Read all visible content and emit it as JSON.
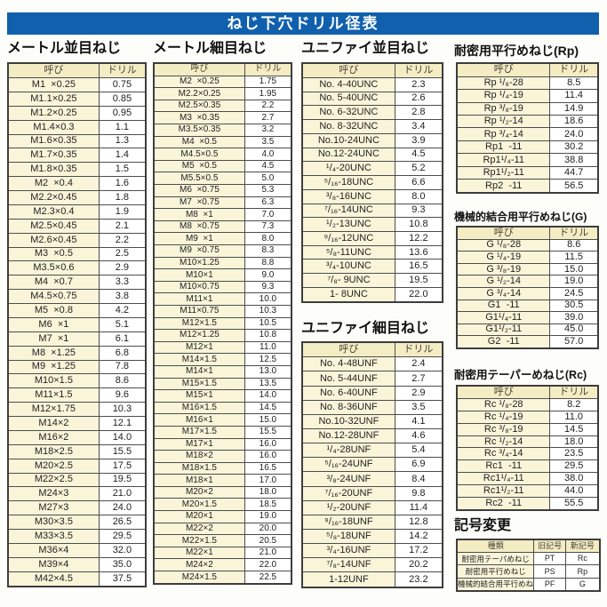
{
  "page_title": "ねじ下穴ドリル径表",
  "colors": {
    "banner_blue": "#1160ae",
    "header_cell_bg": "#f4edc4",
    "name_cell_bg": "#faf5d9",
    "value_cell_bg": "#ffffff",
    "border": "#4d4d4d"
  },
  "tables": [
    {
      "id": "metric-coarse",
      "title": "メートル並目ねじ",
      "columns": [
        "呼び",
        "ドリル"
      ],
      "rows": [
        [
          "M1  ×0.25",
          "0.75"
        ],
        [
          "M1.1×0.25",
          "0.85"
        ],
        [
          "M1.2×0.25",
          "0.95"
        ],
        [
          "M1.4×0.3",
          "1.1"
        ],
        [
          "M1.6×0.35",
          "1.3"
        ],
        [
          "M1.7×0.35",
          "1.4"
        ],
        [
          "M1.8×0.35",
          "1.5"
        ],
        [
          "M2  ×0.4",
          "1.6"
        ],
        [
          "M2.2×0.45",
          "1.8"
        ],
        [
          "M2.3×0.4",
          "1.9"
        ],
        [
          "M2.5×0.45",
          "2.1"
        ],
        [
          "M2.6×0.45",
          "2.2"
        ],
        [
          "M3  ×0.5",
          "2.5"
        ],
        [
          "M3.5×0.6",
          "2.9"
        ],
        [
          "M4  ×0.7",
          "3.3"
        ],
        [
          "M4.5×0.75",
          "3.8"
        ],
        [
          "M5  ×0.8",
          "4.2"
        ],
        [
          "M6  ×1",
          "5.1"
        ],
        [
          "M7  ×1",
          "6.1"
        ],
        [
          "M8  ×1.25",
          "6.8"
        ],
        [
          "M9  ×1.25",
          "7.8"
        ],
        [
          "M10×1.5",
          "8.6"
        ],
        [
          "M11×1.5",
          "9.6"
        ],
        [
          "M12×1.75",
          "10.3"
        ],
        [
          "M14×2",
          "12.1"
        ],
        [
          "M16×2",
          "14.0"
        ],
        [
          "M18×2.5",
          "15.5"
        ],
        [
          "M20×2.5",
          "17.5"
        ],
        [
          "M22×2.5",
          "19.5"
        ],
        [
          "M24×3",
          "21.0"
        ],
        [
          "M27×3",
          "24.0"
        ],
        [
          "M30×3.5",
          "26.5"
        ],
        [
          "M33×3.5",
          "29.5"
        ],
        [
          "M36×4",
          "32.0"
        ],
        [
          "M39×4",
          "35.0"
        ],
        [
          "M42×4.5",
          "37.5"
        ]
      ]
    },
    {
      "id": "metric-fine",
      "title": "メートル細目ねじ",
      "columns": [
        "呼び",
        "ドリル"
      ],
      "rows": [
        [
          "M2  ×0.25",
          "1.75"
        ],
        [
          "M2.2×0.25",
          "1.95"
        ],
        [
          "M2.5×0.35",
          "2.2"
        ],
        [
          "M3  ×0.35",
          "2.7"
        ],
        [
          "M3.5×0.35",
          "3.2"
        ],
        [
          "M4  ×0.5",
          "3.5"
        ],
        [
          "M4.5×0.5",
          "4.0"
        ],
        [
          "M5  ×0.5",
          "4.5"
        ],
        [
          "M5.5×0.5",
          "5.0"
        ],
        [
          "M6  ×0.75",
          "5.3"
        ],
        [
          "M7  ×0.75",
          "6.3"
        ],
        [
          "M8  ×1",
          "7.0"
        ],
        [
          "M8  ×0.75",
          "7.3"
        ],
        [
          "M9  ×1",
          "8.0"
        ],
        [
          "M9  ×0.75",
          "8.3"
        ],
        [
          "M10×1.25",
          "8.8"
        ],
        [
          "M10×1",
          "9.0"
        ],
        [
          "M10×0.75",
          "9.3"
        ],
        [
          "M11×1",
          "10.0"
        ],
        [
          "M11×0.75",
          "10.3"
        ],
        [
          "M12×1.5",
          "10.5"
        ],
        [
          "M12×1.25",
          "10.8"
        ],
        [
          "M12×1",
          "11.0"
        ],
        [
          "M14×1.5",
          "12.5"
        ],
        [
          "M14×1",
          "13.0"
        ],
        [
          "M15×1.5",
          "13.5"
        ],
        [
          "M15×1",
          "14.0"
        ],
        [
          "M16×1.5",
          "14.5"
        ],
        [
          "M16×1",
          "15.0"
        ],
        [
          "M17×1.5",
          "15.5"
        ],
        [
          "M17×1",
          "16.0"
        ],
        [
          "M18×2",
          "16.0"
        ],
        [
          "M18×1.5",
          "16.5"
        ],
        [
          "M18×1",
          "17.0"
        ],
        [
          "M20×2",
          "18.0"
        ],
        [
          "M20×1.5",
          "18.5"
        ],
        [
          "M20×1",
          "19.0"
        ],
        [
          "M22×2",
          "20.0"
        ],
        [
          "M22×1.5",
          "20.5"
        ],
        [
          "M22×1",
          "21.0"
        ],
        [
          "M24×2",
          "22.0"
        ],
        [
          "M24×1.5",
          "22.5"
        ]
      ]
    },
    {
      "id": "unified-coarse",
      "title": "ユニファイ並目ねじ",
      "columns": [
        "呼び",
        "ドリル"
      ],
      "rows": [
        [
          "No. 4-40UNC",
          "2.3"
        ],
        [
          "No. 5-40UNC",
          "2.6"
        ],
        [
          "No. 6-32UNC",
          "2.8"
        ],
        [
          "No. 8-32UNC",
          "3.4"
        ],
        [
          "No.10-24UNC",
          "3.9"
        ],
        [
          "No.12-24UNC",
          "4.5"
        ],
        [
          "¹/₄-20UNC",
          "5.2"
        ],
        [
          "⁵/₁₆-18UNC",
          "6.6"
        ],
        [
          "³/₈-16UNC",
          "8.0"
        ],
        [
          "⁷/₁₆-14UNC",
          "9.3"
        ],
        [
          "¹/₂-13UNC",
          "10.8"
        ],
        [
          "⁹/₁₆-12UNC",
          "12.2"
        ],
        [
          "⁵/₈-11UNC",
          "13.6"
        ],
        [
          "³/₄-10UNC",
          "16.5"
        ],
        [
          "⁷/₈- 9UNC",
          "19.5"
        ],
        [
          "1- 8UNC",
          "22.0"
        ]
      ]
    },
    {
      "id": "unified-fine",
      "title": "ユニファイ細目ねじ",
      "columns": [
        "呼び",
        "ドリル"
      ],
      "rows": [
        [
          "No. 4-48UNF",
          "2.4"
        ],
        [
          "No. 5-44UNF",
          "2.7"
        ],
        [
          "No. 6-40UNF",
          "2.9"
        ],
        [
          "No. 8-36UNF",
          "3.5"
        ],
        [
          "No.10-32UNF",
          "4.1"
        ],
        [
          "No.12-28UNF",
          "4.6"
        ],
        [
          "¹/₄-28UNF",
          "5.4"
        ],
        [
          "⁵/₁₆-24UNF",
          "6.9"
        ],
        [
          "³/₈-24UNF",
          "8.4"
        ],
        [
          "⁷/₁₆-20UNF",
          "9.8"
        ],
        [
          "¹/₂-20UNF",
          "11.4"
        ],
        [
          "⁹/₁₆-18UNF",
          "12.8"
        ],
        [
          "⁵/₈-18UNF",
          "14.2"
        ],
        [
          "³/₄-16UNF",
          "17.2"
        ],
        [
          "⁷/₈-14UNF",
          "20.2"
        ],
        [
          "1-12UNF",
          "23.2"
        ]
      ]
    },
    {
      "id": "rp-parallel",
      "title": "耐密用平行めねじ(Rp)",
      "columns": [
        "呼び",
        "ドリル"
      ],
      "rows": [
        [
          "Rp ¹/₈-28",
          "8.5"
        ],
        [
          "Rp ¹/₄-19",
          "11.4"
        ],
        [
          "Rp ³/₈-19",
          "14.9"
        ],
        [
          "Rp ¹/₂-14",
          "18.6"
        ],
        [
          "Rp ³/₄-14",
          "24.0"
        ],
        [
          "Rp1  -11",
          "30.2"
        ],
        [
          "Rp1¹/₄-11",
          "38.8"
        ],
        [
          "Rp1¹/₂-11",
          "44.7"
        ],
        [
          "Rp2  -11",
          "56.5"
        ]
      ]
    },
    {
      "id": "g-parallel",
      "title": "機械的結合用平行めねじ(G)",
      "columns": [
        "呼び",
        "ドリル"
      ],
      "rows": [
        [
          "G ¹/₈-28",
          "8.6"
        ],
        [
          "G ¹/₄-19",
          "11.5"
        ],
        [
          "G ³/₈-19",
          "15.0"
        ],
        [
          "G ¹/₂-14",
          "19.0"
        ],
        [
          "G ³/₄-14",
          "24.5"
        ],
        [
          "G1  -11",
          "30.5"
        ],
        [
          "G1¹/₄-11",
          "39.0"
        ],
        [
          "G1¹/₂-11",
          "45.0"
        ],
        [
          "G2  -11",
          "57.0"
        ]
      ]
    },
    {
      "id": "rc-taper",
      "title": "耐密用テーパーめねじ(Rc)",
      "columns": [
        "呼び",
        "ドリル"
      ],
      "rows": [
        [
          "Rc ¹/₈-28",
          "8.2"
        ],
        [
          "Rc ¹/₄-19",
          "11.0"
        ],
        [
          "Rc ³/₈-19",
          "14.5"
        ],
        [
          "Rc ¹/₂-14",
          "18.0"
        ],
        [
          "Rc ³/₄-14",
          "23.5"
        ],
        [
          "Rc1  -11",
          "29.5"
        ],
        [
          "Rc1¹/₄-11",
          "38.0"
        ],
        [
          "Rc1¹/₂-11",
          "44.0"
        ],
        [
          "Rc2  -11",
          "55.5"
        ]
      ]
    },
    {
      "id": "symbol-change",
      "title": "記号変更",
      "columns": [
        "種類",
        "旧記号",
        "新記号"
      ],
      "rows": [
        [
          "耐密用テーパめねじ",
          "PT",
          "Rc"
        ],
        [
          "耐密用平行めねじ",
          "PS",
          "Rp"
        ],
        [
          "機械的結合用平行めねじ",
          "PF",
          "G"
        ]
      ]
    }
  ]
}
